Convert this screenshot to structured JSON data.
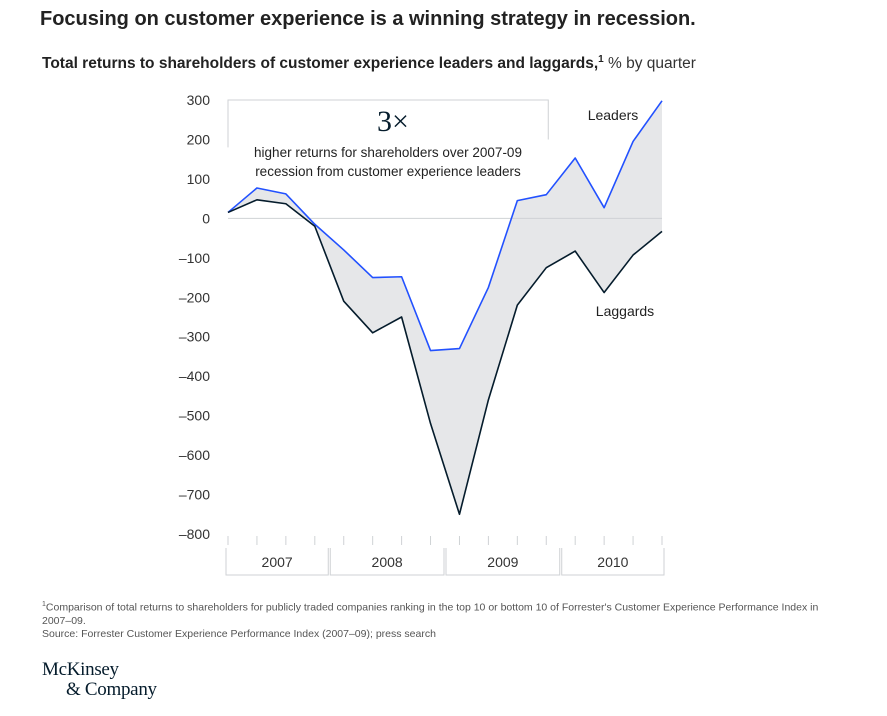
{
  "headline": "Focusing on customer experience is a winning strategy in recession.",
  "subtitle": {
    "main": "Total returns to shareholders of customer experience leaders and laggards,",
    "footnote_marker": "1",
    "unit": " % by quarter"
  },
  "callout": {
    "big": "3×",
    "line1": "higher returns for shareholders over 2007-09",
    "line2": "recession from customer experience leaders"
  },
  "footnotes": {
    "marker": "1",
    "note": "Comparison of total returns to shareholders for publicly traded companies ranking in the top 10 or bottom 10 of Forrester's Customer Experience Performance Index in 2007–09.",
    "source": "Source: Forrester Customer Experience Performance Index (2007–09); press search"
  },
  "logo": {
    "line1": "McKinsey",
    "line2": "& Company"
  },
  "chart_data": {
    "type": "line",
    "title": "Total returns to shareholders of customer experience leaders and laggards",
    "ylabel": "% by quarter",
    "ylim": [
      -800,
      300
    ],
    "yticks": [
      300,
      200,
      100,
      0,
      -100,
      -200,
      -300,
      -400,
      -500,
      -600,
      -700,
      -800
    ],
    "ytick_labels": [
      "300",
      "200",
      "100",
      "0",
      "–100",
      "–200",
      "–300",
      "–400",
      "–500",
      "–600",
      "–700",
      "–800"
    ],
    "year_groups": [
      {
        "label": "2007",
        "start": 0,
        "end": 4
      },
      {
        "label": "2008",
        "start": 4,
        "end": 8
      },
      {
        "label": "2009",
        "start": 8,
        "end": 12
      },
      {
        "label": "2010",
        "start": 12,
        "end": 16
      }
    ],
    "x_count": 16,
    "grid": false,
    "zero_line": true,
    "fill_between": true,
    "series": [
      {
        "name": "Leaders",
        "color": "#2251ff",
        "values": [
          15,
          77,
          62,
          -15,
          -80,
          -150,
          -148,
          -335,
          -330,
          -175,
          45,
          60,
          153,
          27,
          195,
          298
        ]
      },
      {
        "name": "Laggards",
        "color": "#051c2c",
        "values": [
          15,
          47,
          37,
          -20,
          -210,
          -290,
          -250,
          -520,
          -750,
          -460,
          -220,
          -125,
          -83,
          -188,
          -93,
          -33
        ]
      }
    ],
    "colors": {
      "fill": "#e6e7e9",
      "axis": "#cfd2d5",
      "tick_text": "#333333",
      "callout_border": "#cfd2d5"
    }
  }
}
